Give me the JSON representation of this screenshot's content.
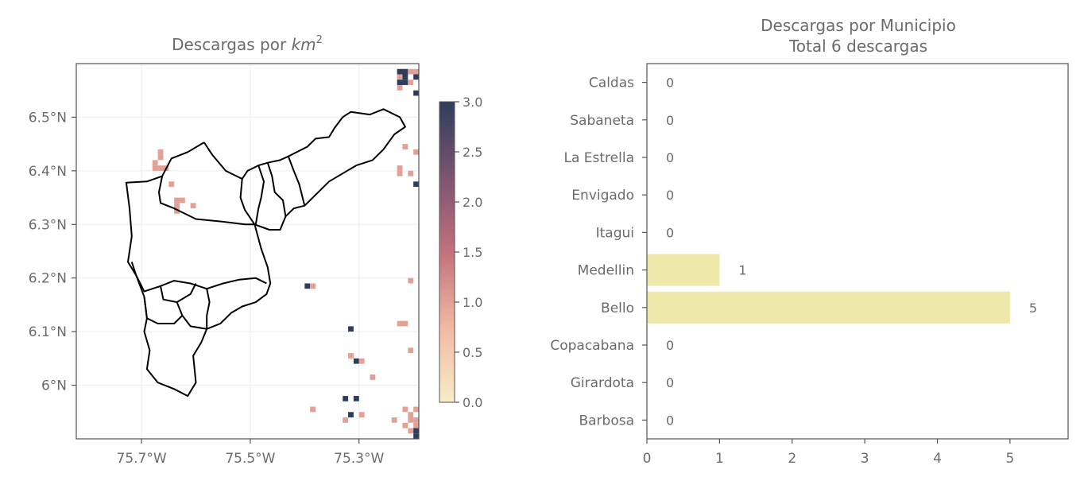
{
  "chart_data": [
    {
      "type": "heatmap",
      "title_text": "Descargas por ",
      "title_math": "km",
      "title_sup": "2",
      "xlabel": "",
      "ylabel": "",
      "xlim": [
        -75.82,
        -75.19
      ],
      "ylim": [
        5.9,
        6.6
      ],
      "x_ticks": [
        -75.7,
        -75.5,
        -75.3
      ],
      "x_tick_labels": [
        "75.7°W",
        "75.5°W",
        "75.3°W"
      ],
      "y_ticks": [
        6.0,
        6.1,
        6.2,
        6.3,
        6.4,
        6.5
      ],
      "y_tick_labels": [
        "6°N",
        "6.1°N",
        "6.2°N",
        "6.3°N",
        "6.4°N",
        "6.5°N"
      ],
      "grid": true,
      "colorbar": {
        "range": [
          0.0,
          3.0
        ],
        "ticks": [
          0.0,
          0.5,
          1.0,
          1.5,
          2.0,
          2.5,
          3.0
        ],
        "tick_labels": [
          "0.0",
          "0.5",
          "1.0",
          "1.5",
          "2.0",
          "2.5",
          "3.0"
        ],
        "colors": [
          "#f7edc6",
          "#f2b9a2",
          "#c2717d",
          "#7c5470",
          "#2f3d5c"
        ]
      },
      "cells": [
        {
          "lon": -75.215,
          "lat": 6.585,
          "v": 3
        },
        {
          "lon": -75.225,
          "lat": 6.585,
          "v": 3
        },
        {
          "lon": -75.205,
          "lat": 6.585,
          "v": 1
        },
        {
          "lon": -75.195,
          "lat": 6.585,
          "v": 1
        },
        {
          "lon": -75.225,
          "lat": 6.575,
          "v": 1
        },
        {
          "lon": -75.215,
          "lat": 6.575,
          "v": 3
        },
        {
          "lon": -75.195,
          "lat": 6.575,
          "v": 3
        },
        {
          "lon": -75.225,
          "lat": 6.565,
          "v": 3
        },
        {
          "lon": -75.215,
          "lat": 6.565,
          "v": 3
        },
        {
          "lon": -75.205,
          "lat": 6.565,
          "v": 1
        },
        {
          "lon": -75.225,
          "lat": 6.555,
          "v": 1
        },
        {
          "lon": -75.195,
          "lat": 6.545,
          "v": 3
        },
        {
          "lon": -75.185,
          "lat": 6.545,
          "v": 1
        },
        {
          "lon": -75.215,
          "lat": 6.445,
          "v": 1
        },
        {
          "lon": -75.195,
          "lat": 6.435,
          "v": 1
        },
        {
          "lon": -75.225,
          "lat": 6.405,
          "v": 1
        },
        {
          "lon": -75.225,
          "lat": 6.395,
          "v": 1
        },
        {
          "lon": -75.205,
          "lat": 6.395,
          "v": 1
        },
        {
          "lon": -75.185,
          "lat": 6.395,
          "v": 1
        },
        {
          "lon": -75.185,
          "lat": 6.385,
          "v": 1
        },
        {
          "lon": -75.195,
          "lat": 6.375,
          "v": 3
        },
        {
          "lon": -75.185,
          "lat": 6.365,
          "v": 3
        },
        {
          "lon": -75.185,
          "lat": 6.355,
          "v": 1
        },
        {
          "lon": -75.185,
          "lat": 6.345,
          "v": 1
        },
        {
          "lon": -75.185,
          "lat": 6.325,
          "v": 1
        },
        {
          "lon": -75.185,
          "lat": 6.305,
          "v": 1
        },
        {
          "lon": -75.185,
          "lat": 6.285,
          "v": 1
        },
        {
          "lon": -75.185,
          "lat": 6.275,
          "v": 1
        },
        {
          "lon": -75.665,
          "lat": 6.435,
          "v": 1
        },
        {
          "lon": -75.665,
          "lat": 6.425,
          "v": 1
        },
        {
          "lon": -75.675,
          "lat": 6.415,
          "v": 1
        },
        {
          "lon": -75.665,
          "lat": 6.405,
          "v": 1
        },
        {
          "lon": -75.675,
          "lat": 6.405,
          "v": 1
        },
        {
          "lon": -75.655,
          "lat": 6.405,
          "v": 1
        },
        {
          "lon": -75.645,
          "lat": 6.375,
          "v": 1
        },
        {
          "lon": -75.635,
          "lat": 6.345,
          "v": 1
        },
        {
          "lon": -75.625,
          "lat": 6.345,
          "v": 1
        },
        {
          "lon": -75.635,
          "lat": 6.335,
          "v": 1
        },
        {
          "lon": -75.605,
          "lat": 6.335,
          "v": 1
        },
        {
          "lon": -75.635,
          "lat": 6.325,
          "v": 1
        },
        {
          "lon": -75.395,
          "lat": 6.185,
          "v": 3
        },
        {
          "lon": -75.385,
          "lat": 6.185,
          "v": 1
        },
        {
          "lon": -75.205,
          "lat": 6.195,
          "v": 1
        },
        {
          "lon": -75.185,
          "lat": 6.185,
          "v": 1
        },
        {
          "lon": -75.225,
          "lat": 6.115,
          "v": 1
        },
        {
          "lon": -75.215,
          "lat": 6.115,
          "v": 1
        },
        {
          "lon": -75.315,
          "lat": 6.105,
          "v": 3
        },
        {
          "lon": -75.185,
          "lat": 6.085,
          "v": 3
        },
        {
          "lon": -75.205,
          "lat": 6.065,
          "v": 1
        },
        {
          "lon": -75.315,
          "lat": 6.055,
          "v": 1
        },
        {
          "lon": -75.305,
          "lat": 6.045,
          "v": 3
        },
        {
          "lon": -75.295,
          "lat": 6.045,
          "v": 1
        },
        {
          "lon": -75.275,
          "lat": 6.015,
          "v": 1
        },
        {
          "lon": -75.185,
          "lat": 6.015,
          "v": 1
        },
        {
          "lon": -75.325,
          "lat": 5.975,
          "v": 3
        },
        {
          "lon": -75.305,
          "lat": 5.975,
          "v": 3
        },
        {
          "lon": -75.185,
          "lat": 5.975,
          "v": 1
        },
        {
          "lon": -75.385,
          "lat": 5.955,
          "v": 1
        },
        {
          "lon": -75.215,
          "lat": 5.955,
          "v": 1
        },
        {
          "lon": -75.195,
          "lat": 5.955,
          "v": 1
        },
        {
          "lon": -75.315,
          "lat": 5.945,
          "v": 3
        },
        {
          "lon": -75.295,
          "lat": 5.945,
          "v": 1
        },
        {
          "lon": -75.205,
          "lat": 5.945,
          "v": 1
        },
        {
          "lon": -75.185,
          "lat": 5.945,
          "v": 1
        },
        {
          "lon": -75.325,
          "lat": 5.935,
          "v": 1
        },
        {
          "lon": -75.235,
          "lat": 5.935,
          "v": 1
        },
        {
          "lon": -75.205,
          "lat": 5.935,
          "v": 1
        },
        {
          "lon": -75.195,
          "lat": 5.935,
          "v": 1
        },
        {
          "lon": -75.215,
          "lat": 5.925,
          "v": 1
        },
        {
          "lon": -75.195,
          "lat": 5.925,
          "v": 1
        },
        {
          "lon": -75.205,
          "lat": 5.915,
          "v": 1
        },
        {
          "lon": -75.195,
          "lat": 5.915,
          "v": 3
        },
        {
          "lon": -75.185,
          "lat": 5.915,
          "v": 1
        },
        {
          "lon": -75.195,
          "lat": 5.905,
          "v": 3
        },
        {
          "lon": -75.185,
          "lat": 5.905,
          "v": 3
        }
      ],
      "boundaries": [
        [
          [
            -75.585,
            6.453
          ],
          [
            -75.615,
            6.435
          ],
          [
            -75.645,
            6.423
          ],
          [
            -75.662,
            6.39
          ],
          [
            -75.69,
            6.38
          ],
          [
            -75.728,
            6.378
          ],
          [
            -75.722,
            6.33
          ],
          [
            -75.718,
            6.278
          ],
          [
            -75.725,
            6.23
          ],
          [
            -75.71,
            6.205
          ],
          [
            -75.695,
            6.165
          ],
          [
            -75.69,
            6.125
          ],
          [
            -75.695,
            6.1
          ],
          [
            -75.685,
            6.065
          ],
          [
            -75.69,
            6.03
          ],
          [
            -75.67,
            6.005
          ],
          [
            -75.64,
            5.993
          ],
          [
            -75.615,
            5.98
          ],
          [
            -75.6,
            6.005
          ],
          [
            -75.605,
            6.055
          ],
          [
            -75.59,
            6.08
          ],
          [
            -75.58,
            6.105
          ],
          [
            -75.555,
            6.115
          ],
          [
            -75.535,
            6.135
          ],
          [
            -75.515,
            6.147
          ],
          [
            -75.49,
            6.155
          ],
          [
            -75.47,
            6.17
          ],
          [
            -75.463,
            6.19
          ],
          [
            -75.468,
            6.22
          ],
          [
            -75.48,
            6.255
          ],
          [
            -75.492,
            6.3
          ],
          [
            -75.51,
            6.327
          ],
          [
            -75.518,
            6.35
          ],
          [
            -75.515,
            6.385
          ],
          [
            -75.505,
            6.4
          ],
          [
            -75.485,
            6.41
          ],
          [
            -75.468,
            6.415
          ],
          [
            -75.445,
            6.42
          ],
          [
            -75.43,
            6.427
          ],
          [
            -75.395,
            6.445
          ],
          [
            -75.38,
            6.46
          ],
          [
            -75.355,
            6.463
          ],
          [
            -75.345,
            6.48
          ],
          [
            -75.33,
            6.5
          ],
          [
            -75.315,
            6.51
          ],
          [
            -75.28,
            6.505
          ],
          [
            -75.255,
            6.515
          ],
          [
            -75.225,
            6.5
          ],
          [
            -75.215,
            6.482
          ],
          [
            -75.235,
            6.468
          ],
          [
            -75.255,
            6.44
          ],
          [
            -75.275,
            6.42
          ],
          [
            -75.305,
            6.41
          ],
          [
            -75.33,
            6.395
          ],
          [
            -75.355,
            6.38
          ],
          [
            -75.375,
            6.36
          ],
          [
            -75.4,
            6.335
          ],
          [
            -75.42,
            6.33
          ],
          [
            -75.435,
            6.315
          ],
          [
            -75.445,
            6.29
          ],
          [
            -75.465,
            6.29
          ],
          [
            -75.492,
            6.3
          ]
        ],
        [
          [
            -75.662,
            6.39
          ],
          [
            -75.668,
            6.36
          ],
          [
            -75.665,
            6.34
          ],
          [
            -75.64,
            6.33
          ],
          [
            -75.6,
            6.31
          ],
          [
            -75.55,
            6.305
          ],
          [
            -75.51,
            6.3
          ],
          [
            -75.492,
            6.3
          ]
        ],
        [
          [
            -75.585,
            6.453
          ],
          [
            -75.57,
            6.43
          ],
          [
            -75.545,
            6.4
          ],
          [
            -75.525,
            6.39
          ],
          [
            -75.515,
            6.385
          ]
        ],
        [
          [
            -75.485,
            6.41
          ],
          [
            -75.475,
            6.38
          ],
          [
            -75.48,
            6.35
          ],
          [
            -75.485,
            6.33
          ],
          [
            -75.49,
            6.3
          ]
        ],
        [
          [
            -75.468,
            6.415
          ],
          [
            -75.46,
            6.39
          ],
          [
            -75.455,
            6.36
          ],
          [
            -75.44,
            6.345
          ],
          [
            -75.435,
            6.315
          ]
        ],
        [
          [
            -75.43,
            6.427
          ],
          [
            -75.42,
            6.4
          ],
          [
            -75.41,
            6.375
          ],
          [
            -75.405,
            6.355
          ],
          [
            -75.4,
            6.335
          ]
        ],
        [
          [
            -75.718,
            6.23
          ],
          [
            -75.71,
            6.205
          ],
          [
            -75.695,
            6.175
          ],
          [
            -75.665,
            6.185
          ],
          [
            -75.64,
            6.195
          ],
          [
            -75.61,
            6.19
          ],
          [
            -75.58,
            6.18
          ],
          [
            -75.55,
            6.19
          ],
          [
            -75.52,
            6.197
          ],
          [
            -75.49,
            6.2
          ],
          [
            -75.47,
            6.19
          ]
        ],
        [
          [
            -75.665,
            6.185
          ],
          [
            -75.66,
            6.16
          ],
          [
            -75.635,
            6.155
          ],
          [
            -75.61,
            6.17
          ],
          [
            -75.6,
            6.19
          ]
        ],
        [
          [
            -75.635,
            6.155
          ],
          [
            -75.625,
            6.13
          ],
          [
            -75.61,
            6.11
          ],
          [
            -75.58,
            6.105
          ]
        ],
        [
          [
            -75.695,
            6.165
          ],
          [
            -75.69,
            6.125
          ],
          [
            -75.67,
            6.115
          ],
          [
            -75.64,
            6.115
          ],
          [
            -75.625,
            6.13
          ]
        ],
        [
          [
            -75.58,
            6.18
          ],
          [
            -75.575,
            6.155
          ],
          [
            -75.58,
            6.13
          ],
          [
            -75.58,
            6.105
          ]
        ]
      ]
    },
    {
      "type": "bar",
      "orientation": "horizontal",
      "title_line1": "Descargas por Municipio",
      "title_line2": "Total 6 descargas",
      "xlabel": "",
      "ylabel": "",
      "categories": [
        "Caldas",
        "Sabaneta",
        "La Estrella",
        "Envigado",
        "Itagui",
        "Medellin",
        "Bello",
        "Copacabana",
        "Girardota",
        "Barbosa"
      ],
      "values": [
        0,
        0,
        0,
        0,
        0,
        1,
        5,
        0,
        0,
        0
      ],
      "data_labels": [
        "0",
        "0",
        "0",
        "0",
        "0",
        "1",
        "5",
        "0",
        "0",
        "0"
      ],
      "xlim": [
        0,
        5.8
      ],
      "x_ticks": [
        0,
        1,
        2,
        3,
        4,
        5
      ],
      "x_tick_labels": [
        "0",
        "1",
        "2",
        "3",
        "4",
        "5"
      ],
      "bar_color": "#eee8aa",
      "grid": false
    }
  ]
}
